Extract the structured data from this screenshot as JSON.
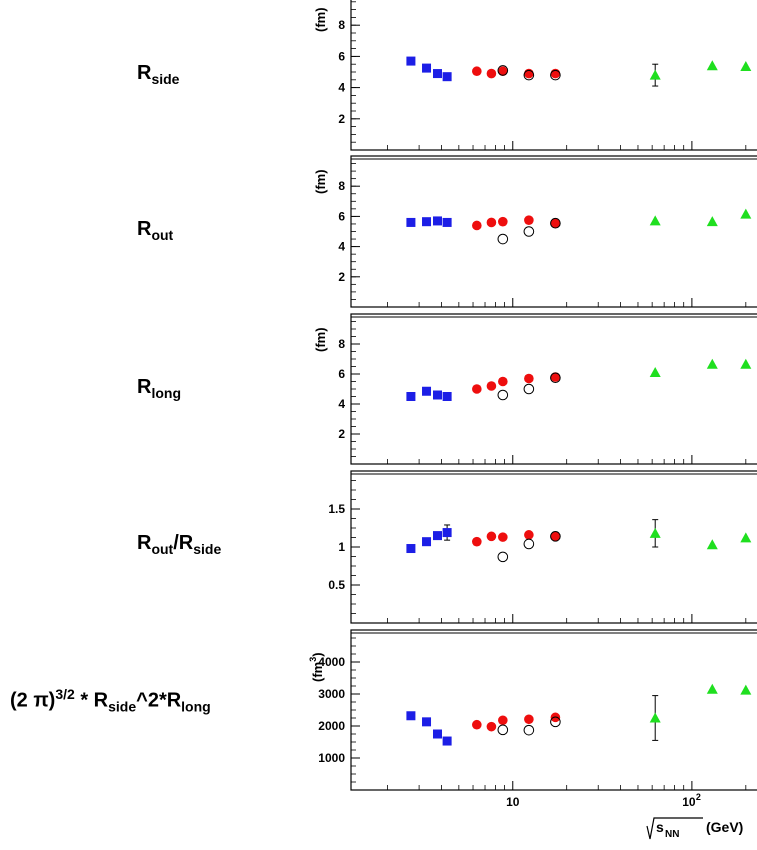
{
  "x_axis": {
    "tick_labels": [
      "10",
      "10",
      "2"
    ],
    "label_main": "s",
    "label_sub": "NN",
    "label_unit": "(GeV)"
  },
  "rows": [
    {
      "label_main": "R",
      "label_sub": "side",
      "unit": "(fm)"
    },
    {
      "label_main": "R",
      "label_sub": "out",
      "unit": "(fm)"
    },
    {
      "label_main": "R",
      "label_sub": "long",
      "unit": "(fm)"
    },
    {
      "label_a": "R",
      "label_sub_a": "out",
      "label_slash": "/R",
      "label_sub_b": "side",
      "unit": ""
    },
    {
      "label_prefix": "(2 π)",
      "label_sup": "3/2",
      "label_mid": " * R",
      "label_sub_a": "side",
      "label_mid2": "^2*R",
      "label_sub_b": "long",
      "unit": "(fm",
      "unit_sup": "3",
      "unit_close": ")"
    }
  ],
  "colors": {
    "blue_squares": "#1c1ee6",
    "red_circles": "#ee0e0e",
    "open_circles": "#000000",
    "green_triangles": "#1fdf1f"
  },
  "chart_data": [
    {
      "type": "scatter",
      "title": "",
      "xlabel": "√s_NN (GeV)",
      "ylabel": "(fm)",
      "xscale": "log",
      "xlim": [
        1.25,
        240
      ],
      "ylim": [
        0,
        10
      ],
      "yticks": [
        2,
        4,
        6,
        8
      ],
      "series": [
        {
          "marker": "square",
          "color": "#1c1ee6",
          "x": [
            2.7,
            3.3,
            3.8,
            4.3
          ],
          "y": [
            5.7,
            5.25,
            4.9,
            4.7
          ]
        },
        {
          "marker": "circle",
          "color": "#ee0e0e",
          "x": [
            6.3,
            7.6,
            8.8,
            12.3,
            17.3
          ],
          "y": [
            5.05,
            4.9,
            5.05,
            4.9,
            4.9
          ]
        },
        {
          "marker": "open-circle",
          "color": "#000000",
          "x": [
            8.8,
            12.3,
            17.3
          ],
          "y": [
            5.1,
            4.8,
            4.8
          ]
        },
        {
          "marker": "triangle",
          "color": "#1fdf1f",
          "x": [
            62.4,
            130,
            200
          ],
          "y": [
            4.8,
            5.4,
            5.35
          ],
          "yerr": [
            0.7,
            0,
            0
          ]
        }
      ]
    },
    {
      "type": "scatter",
      "title": "",
      "xlabel": "√s_NN (GeV)",
      "ylabel": "(fm)",
      "xscale": "log",
      "xlim": [
        1.25,
        240
      ],
      "ylim": [
        0,
        10
      ],
      "yticks": [
        2,
        4,
        6,
        8
      ],
      "series": [
        {
          "marker": "square",
          "color": "#1c1ee6",
          "x": [
            2.7,
            3.3,
            3.8,
            4.3
          ],
          "y": [
            5.6,
            5.65,
            5.7,
            5.6
          ]
        },
        {
          "marker": "circle",
          "color": "#ee0e0e",
          "x": [
            6.3,
            7.6,
            8.8,
            12.3,
            17.3
          ],
          "y": [
            5.4,
            5.6,
            5.65,
            5.75,
            5.55
          ]
        },
        {
          "marker": "open-circle",
          "color": "#000000",
          "x": [
            8.8,
            12.3,
            17.3
          ],
          "y": [
            4.5,
            5.0,
            5.55
          ]
        },
        {
          "marker": "triangle",
          "color": "#1fdf1f",
          "x": [
            62.4,
            130,
            200
          ],
          "y": [
            5.7,
            5.65,
            6.15
          ],
          "yerr": [
            0,
            0,
            0
          ]
        }
      ]
    },
    {
      "type": "scatter",
      "title": "",
      "xlabel": "√s_NN (GeV)",
      "ylabel": "(fm)",
      "xscale": "log",
      "xlim": [
        1.25,
        240
      ],
      "ylim": [
        0,
        10
      ],
      "yticks": [
        2,
        4,
        6,
        8
      ],
      "series": [
        {
          "marker": "square",
          "color": "#1c1ee6",
          "x": [
            2.7,
            3.3,
            3.8,
            4.3
          ],
          "y": [
            4.5,
            4.85,
            4.6,
            4.5
          ]
        },
        {
          "marker": "circle",
          "color": "#ee0e0e",
          "x": [
            6.3,
            7.6,
            8.8,
            12.3,
            17.3
          ],
          "y": [
            5.0,
            5.2,
            5.5,
            5.7,
            5.8
          ]
        },
        {
          "marker": "open-circle",
          "color": "#000000",
          "x": [
            8.8,
            12.3,
            17.3
          ],
          "y": [
            4.6,
            5.0,
            5.75
          ]
        },
        {
          "marker": "triangle",
          "color": "#1fdf1f",
          "x": [
            62.4,
            130,
            200
          ],
          "y": [
            6.1,
            6.65,
            6.65
          ],
          "yerr": [
            0,
            0,
            0
          ]
        }
      ]
    },
    {
      "type": "scatter",
      "title": "",
      "xlabel": "√s_NN (GeV)",
      "ylabel": "",
      "xscale": "log",
      "xlim": [
        1.25,
        240
      ],
      "ylim": [
        0,
        2
      ],
      "yticks": [
        0.5,
        1,
        1.5
      ],
      "ytick_labels": [
        "0.5",
        "1",
        "1.5"
      ],
      "series": [
        {
          "marker": "square",
          "color": "#1c1ee6",
          "x": [
            2.7,
            3.3,
            3.8,
            4.3
          ],
          "y": [
            0.98,
            1.07,
            1.15,
            1.19
          ],
          "yerr": [
            0,
            0,
            0,
            0.1
          ]
        },
        {
          "marker": "circle",
          "color": "#ee0e0e",
          "x": [
            6.3,
            7.6,
            8.8,
            12.3,
            17.3
          ],
          "y": [
            1.07,
            1.14,
            1.13,
            1.16,
            1.14
          ]
        },
        {
          "marker": "open-circle",
          "color": "#000000",
          "x": [
            8.8,
            12.3,
            17.3
          ],
          "y": [
            0.87,
            1.04,
            1.14
          ]
        },
        {
          "marker": "triangle",
          "color": "#1fdf1f",
          "x": [
            62.4,
            130,
            200
          ],
          "y": [
            1.18,
            1.03,
            1.12
          ],
          "yerr": [
            0.18,
            0,
            0
          ]
        }
      ]
    },
    {
      "type": "scatter",
      "title": "",
      "xlabel": "√s_NN (GeV)",
      "ylabel": "(fm^3)",
      "xscale": "log",
      "xlim": [
        1.25,
        240
      ],
      "ylim": [
        0,
        5000
      ],
      "yticks": [
        1000,
        2000,
        3000,
        4000
      ],
      "series": [
        {
          "marker": "square",
          "color": "#1c1ee6",
          "x": [
            2.7,
            3.3,
            3.8,
            4.3
          ],
          "y": [
            2320,
            2130,
            1750,
            1530
          ]
        },
        {
          "marker": "circle",
          "color": "#ee0e0e",
          "x": [
            6.3,
            7.6,
            8.8,
            12.3,
            17.3
          ],
          "y": [
            2040,
            1980,
            2180,
            2210,
            2270
          ]
        },
        {
          "marker": "open-circle",
          "color": "#000000",
          "x": [
            8.8,
            12.3,
            17.3
          ],
          "y": [
            1880,
            1870,
            2130
          ]
        },
        {
          "marker": "triangle",
          "color": "#1fdf1f",
          "x": [
            62.4,
            130,
            200
          ],
          "y": [
            2250,
            3150,
            3120
          ],
          "yerr": [
            700,
            0,
            0
          ]
        }
      ]
    }
  ]
}
